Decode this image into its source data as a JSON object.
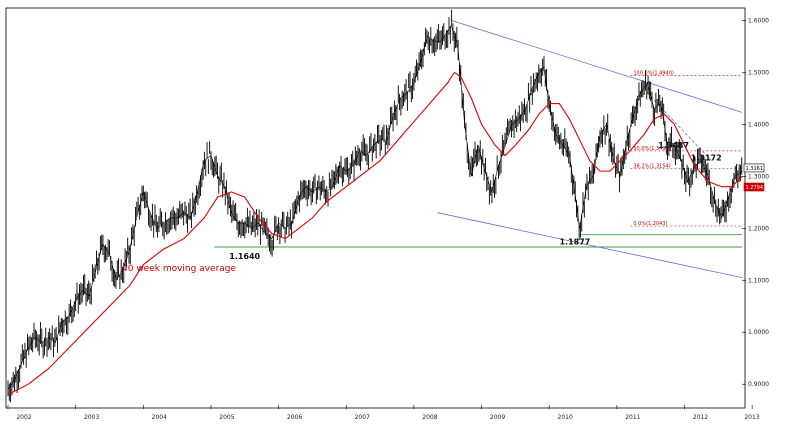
{
  "chart_data": {
    "type": "line",
    "title": "",
    "xlabel": "",
    "ylabel": "",
    "x_ticks": [
      "2002",
      "2003",
      "2004",
      "2005",
      "2006",
      "2007",
      "2008",
      "2009",
      "2010",
      "2011",
      "2012",
      "2013"
    ],
    "y_ticks": [
      "0.9000",
      "1.0000",
      "1.1000",
      "1.2000",
      "1.3000",
      "1.4000",
      "1.5000",
      "1.6000"
    ],
    "ylim": [
      0.86,
      1.62
    ],
    "xlim": [
      2002.0,
      2012.85
    ],
    "grid": false,
    "series": [
      {
        "name": "",
        "style": "weekly-bars",
        "color": "#000000",
        "points": [
          [
            2002.0,
            0.89
          ],
          [
            2002.1,
            0.91
          ],
          [
            2002.2,
            0.94
          ],
          [
            2002.3,
            0.97
          ],
          [
            2002.4,
            0.99
          ],
          [
            2002.5,
            0.98
          ],
          [
            2002.6,
            0.99
          ],
          [
            2002.7,
            0.98
          ],
          [
            2002.8,
            1.02
          ],
          [
            2002.9,
            1.03
          ],
          [
            2003.0,
            1.06
          ],
          [
            2003.1,
            1.08
          ],
          [
            2003.2,
            1.07
          ],
          [
            2003.3,
            1.12
          ],
          [
            2003.4,
            1.17
          ],
          [
            2003.5,
            1.15
          ],
          [
            2003.6,
            1.1
          ],
          [
            2003.7,
            1.12
          ],
          [
            2003.8,
            1.16
          ],
          [
            2003.9,
            1.22
          ],
          [
            2004.0,
            1.27
          ],
          [
            2004.1,
            1.23
          ],
          [
            2004.2,
            1.2
          ],
          [
            2004.3,
            1.21
          ],
          [
            2004.4,
            1.22
          ],
          [
            2004.5,
            1.22
          ],
          [
            2004.6,
            1.23
          ],
          [
            2004.7,
            1.22
          ],
          [
            2004.8,
            1.27
          ],
          [
            2004.9,
            1.33
          ],
          [
            2005.0,
            1.34
          ],
          [
            2005.1,
            1.3
          ],
          [
            2005.2,
            1.28
          ],
          [
            2005.3,
            1.23
          ],
          [
            2005.4,
            1.21
          ],
          [
            2005.5,
            1.21
          ],
          [
            2005.6,
            1.2
          ],
          [
            2005.7,
            1.21
          ],
          [
            2005.8,
            1.19
          ],
          [
            2005.9,
            1.18
          ],
          [
            2006.0,
            1.21
          ],
          [
            2006.1,
            1.2
          ],
          [
            2006.2,
            1.21
          ],
          [
            2006.3,
            1.26
          ],
          [
            2006.4,
            1.28
          ],
          [
            2006.5,
            1.27
          ],
          [
            2006.6,
            1.28
          ],
          [
            2006.7,
            1.27
          ],
          [
            2006.8,
            1.28
          ],
          [
            2006.9,
            1.32
          ],
          [
            2007.0,
            1.31
          ],
          [
            2007.1,
            1.32
          ],
          [
            2007.2,
            1.35
          ],
          [
            2007.3,
            1.34
          ],
          [
            2007.4,
            1.36
          ],
          [
            2007.5,
            1.37
          ],
          [
            2007.6,
            1.37
          ],
          [
            2007.7,
            1.42
          ],
          [
            2007.8,
            1.45
          ],
          [
            2007.9,
            1.46
          ],
          [
            2008.0,
            1.48
          ],
          [
            2008.1,
            1.52
          ],
          [
            2008.2,
            1.57
          ],
          [
            2008.3,
            1.56
          ],
          [
            2008.4,
            1.56
          ],
          [
            2008.5,
            1.58
          ],
          [
            2008.55,
            1.59
          ],
          [
            2008.65,
            1.55
          ],
          [
            2008.75,
            1.4
          ],
          [
            2008.85,
            1.3
          ],
          [
            2008.95,
            1.36
          ],
          [
            2009.05,
            1.31
          ],
          [
            2009.15,
            1.27
          ],
          [
            2009.25,
            1.32
          ],
          [
            2009.35,
            1.36
          ],
          [
            2009.45,
            1.4
          ],
          [
            2009.55,
            1.41
          ],
          [
            2009.65,
            1.43
          ],
          [
            2009.75,
            1.47
          ],
          [
            2009.85,
            1.5
          ],
          [
            2009.92,
            1.51
          ],
          [
            2010.0,
            1.44
          ],
          [
            2010.1,
            1.38
          ],
          [
            2010.2,
            1.36
          ],
          [
            2010.3,
            1.34
          ],
          [
            2010.4,
            1.25
          ],
          [
            2010.45,
            1.2
          ],
          [
            2010.55,
            1.28
          ],
          [
            2010.65,
            1.3
          ],
          [
            2010.75,
            1.38
          ],
          [
            2010.85,
            1.4
          ],
          [
            2010.95,
            1.33
          ],
          [
            2011.05,
            1.3
          ],
          [
            2011.15,
            1.37
          ],
          [
            2011.25,
            1.42
          ],
          [
            2011.35,
            1.46
          ],
          [
            2011.45,
            1.48
          ],
          [
            2011.55,
            1.43
          ],
          [
            2011.65,
            1.44
          ],
          [
            2011.75,
            1.36
          ],
          [
            2011.85,
            1.36
          ],
          [
            2011.95,
            1.33
          ],
          [
            2012.05,
            1.29
          ],
          [
            2012.15,
            1.32
          ],
          [
            2012.25,
            1.33
          ],
          [
            2012.35,
            1.3
          ],
          [
            2012.45,
            1.25
          ],
          [
            2012.55,
            1.22
          ],
          [
            2012.65,
            1.26
          ],
          [
            2012.75,
            1.3
          ],
          [
            2012.85,
            1.31
          ]
        ]
      },
      {
        "name": "40 week moving average",
        "style": "line",
        "color": "#e00000",
        "points": [
          [
            2002.0,
            0.88
          ],
          [
            2002.3,
            0.9
          ],
          [
            2002.6,
            0.93
          ],
          [
            2002.9,
            0.97
          ],
          [
            2003.2,
            1.01
          ],
          [
            2003.5,
            1.05
          ],
          [
            2003.8,
            1.09
          ],
          [
            2004.0,
            1.13
          ],
          [
            2004.3,
            1.16
          ],
          [
            2004.6,
            1.18
          ],
          [
            2004.9,
            1.22
          ],
          [
            2005.1,
            1.26
          ],
          [
            2005.3,
            1.27
          ],
          [
            2005.5,
            1.26
          ],
          [
            2005.7,
            1.22
          ],
          [
            2005.9,
            1.19
          ],
          [
            2006.1,
            1.18
          ],
          [
            2006.3,
            1.2
          ],
          [
            2006.5,
            1.22
          ],
          [
            2006.7,
            1.25
          ],
          [
            2006.9,
            1.27
          ],
          [
            2007.1,
            1.29
          ],
          [
            2007.3,
            1.31
          ],
          [
            2007.5,
            1.33
          ],
          [
            2007.7,
            1.36
          ],
          [
            2007.9,
            1.39
          ],
          [
            2008.1,
            1.42
          ],
          [
            2008.3,
            1.45
          ],
          [
            2008.5,
            1.48
          ],
          [
            2008.6,
            1.5
          ],
          [
            2008.7,
            1.49
          ],
          [
            2008.85,
            1.45
          ],
          [
            2009.0,
            1.4
          ],
          [
            2009.2,
            1.36
          ],
          [
            2009.35,
            1.34
          ],
          [
            2009.5,
            1.36
          ],
          [
            2009.7,
            1.39
          ],
          [
            2009.85,
            1.42
          ],
          [
            2010.0,
            1.44
          ],
          [
            2010.15,
            1.44
          ],
          [
            2010.3,
            1.41
          ],
          [
            2010.45,
            1.37
          ],
          [
            2010.6,
            1.33
          ],
          [
            2010.75,
            1.31
          ],
          [
            2010.9,
            1.31
          ],
          [
            2011.05,
            1.33
          ],
          [
            2011.2,
            1.35
          ],
          [
            2011.4,
            1.38
          ],
          [
            2011.55,
            1.41
          ],
          [
            2011.7,
            1.42
          ],
          [
            2011.85,
            1.4
          ],
          [
            2012.0,
            1.36
          ],
          [
            2012.15,
            1.32
          ],
          [
            2012.35,
            1.29
          ],
          [
            2012.55,
            1.28
          ],
          [
            2012.7,
            1.28
          ],
          [
            2012.85,
            1.3
          ]
        ]
      }
    ],
    "trendlines": [
      {
        "from": [
          2008.55,
          1.6
        ],
        "to": [
          2012.85,
          1.423
        ],
        "color": "#6a6ad8"
      },
      {
        "from": [
          2008.35,
          1.23
        ],
        "to": [
          2012.85,
          1.105
        ],
        "color": "#6a6ad8"
      },
      {
        "from": [
          2011.45,
          1.46
        ],
        "to": [
          2012.4,
          1.33
        ],
        "color": "#6a6ad8",
        "dash": true
      }
    ],
    "horizontal_lines": [
      {
        "y": 1.1877,
        "color": "#3aa03a",
        "from_x": 2010.45
      },
      {
        "y": 1.164,
        "color": "#3aa03a",
        "from_x": 2005.05
      }
    ],
    "fib_levels": [
      {
        "label": "100.0%(1.4940)",
        "y": 1.494
      },
      {
        "label": "50.0%(1.3490)",
        "y": 1.349
      },
      {
        "label": "38.2%(1.3154)",
        "y": 1.3154
      },
      {
        "label": "0.0%(1.2043)",
        "y": 1.2043
      }
    ],
    "annotations": [
      {
        "text": "1.1640",
        "x": 2005.3,
        "y": 1.164
      },
      {
        "text": "1.1877",
        "x": 2010.3,
        "y": 1.1877
      },
      {
        "text": "1.3487",
        "x": 2011.7,
        "y": 1.3487
      },
      {
        "text": "1.3172",
        "x": 2012.3,
        "y": 1.3172
      }
    ],
    "ma_label": "40 week moving average",
    "price_labels": [
      {
        "text": "1.3161",
        "y": 1.3161,
        "color": "#000000"
      },
      {
        "text": "1.2794",
        "y": 1.2794,
        "color": "#cc0000"
      }
    ]
  }
}
